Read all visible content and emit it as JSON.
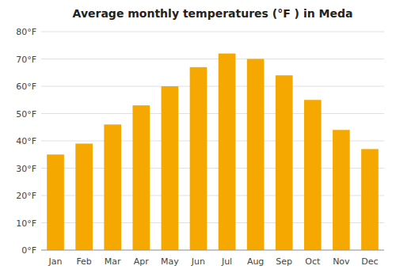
{
  "chart_data": {
    "type": "bar",
    "title": "Average monthly temperatures (°F ) in Meda",
    "categories": [
      "Jan",
      "Feb",
      "Mar",
      "Apr",
      "May",
      "Jun",
      "Jul",
      "Aug",
      "Sep",
      "Oct",
      "Nov",
      "Dec"
    ],
    "values": [
      35,
      39,
      46,
      53,
      60,
      67,
      72,
      70,
      64,
      55,
      44,
      37
    ],
    "color": "#F5A800",
    "ylim": [
      0,
      80
    ],
    "yticks": [
      {
        "value": 0,
        "label": "0°F"
      },
      {
        "value": 10,
        "label": "10°F"
      },
      {
        "value": 20,
        "label": "20°F"
      },
      {
        "value": 30,
        "label": "30°F"
      },
      {
        "value": 40,
        "label": "40°F"
      },
      {
        "value": 50,
        "label": "50°F"
      },
      {
        "value": 60,
        "label": "60°F"
      },
      {
        "value": 70,
        "label": "70°F"
      },
      {
        "value": 80,
        "label": "80°F"
      }
    ],
    "grid": true
  }
}
